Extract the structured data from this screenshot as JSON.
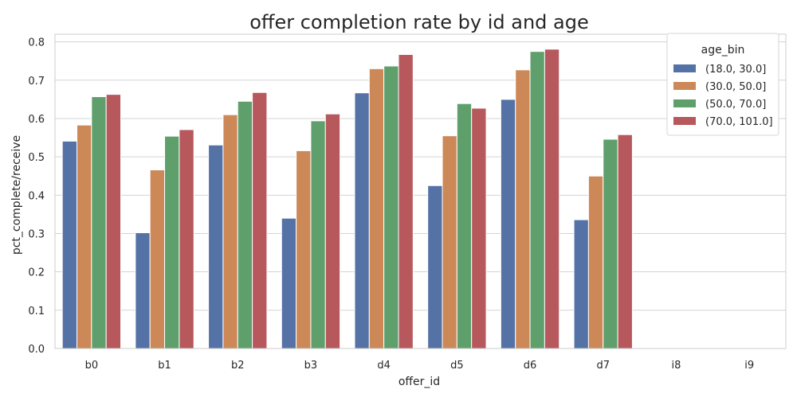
{
  "chart_data": {
    "type": "bar",
    "title": "offer completion rate by id and age",
    "xlabel": "offer_id",
    "ylabel": "pct_complete/receive",
    "categories": [
      "b0",
      "b1",
      "b2",
      "b3",
      "d4",
      "d5",
      "d6",
      "d7",
      "i8",
      "i9"
    ],
    "ylim": [
      0,
      0.82
    ],
    "yticks": [
      0.0,
      0.1,
      0.2,
      0.3,
      0.4,
      0.5,
      0.6,
      0.7,
      0.8
    ],
    "ytick_labels": [
      "0.0",
      "0.1",
      "0.2",
      "0.3",
      "0.4",
      "0.5",
      "0.6",
      "0.7",
      "0.8"
    ],
    "grid": "horizontal",
    "legend": {
      "title": "age_bin",
      "placement": "top-right"
    },
    "series": [
      {
        "name": "(18.0, 30.0]",
        "color": "#5572a6",
        "values": [
          0.541,
          0.302,
          0.531,
          0.34,
          0.667,
          0.425,
          0.65,
          0.336,
          0,
          0
        ]
      },
      {
        "name": "(30.0, 50.0]",
        "color": "#cd8858",
        "values": [
          0.583,
          0.466,
          0.61,
          0.516,
          0.73,
          0.555,
          0.727,
          0.45,
          0,
          0
        ]
      },
      {
        "name": "(50.0, 70.0]",
        "color": "#5e9f6c",
        "values": [
          0.657,
          0.554,
          0.645,
          0.594,
          0.737,
          0.639,
          0.775,
          0.546,
          0,
          0
        ]
      },
      {
        "name": "(70.0, 101.0]",
        "color": "#b6585c",
        "values": [
          0.663,
          0.571,
          0.668,
          0.612,
          0.767,
          0.627,
          0.781,
          0.558,
          0,
          0
        ]
      }
    ]
  }
}
